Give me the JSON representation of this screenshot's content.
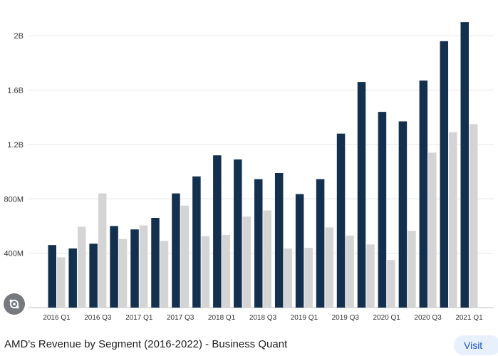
{
  "chart_data": {
    "type": "bar",
    "title": "",
    "xlabel": "",
    "ylabel": "",
    "categories": [
      "2016 Q1",
      "2016 Q2",
      "2016 Q3",
      "2016 Q4",
      "2017 Q1",
      "2017 Q2",
      "2017 Q3",
      "2017 Q4",
      "2018 Q1",
      "2018 Q2",
      "2018 Q3",
      "2018 Q4",
      "2019 Q1",
      "2019 Q2",
      "2019 Q3",
      "2019 Q4",
      "2020 Q1",
      "2020 Q2",
      "2020 Q3",
      "2020 Q4",
      "2021 Q1"
    ],
    "x_tick_labels": [
      "2016 Q1",
      "2016 Q3",
      "2017 Q1",
      "2017 Q3",
      "2018 Q1",
      "2018 Q3",
      "2019 Q1",
      "2019 Q3",
      "2020 Q1",
      "2020 Q3",
      "2021 Q1"
    ],
    "series": [
      {
        "color": "#13314f",
        "values": [
          460000000,
          435000000,
          470000000,
          600000000,
          575000000,
          660000000,
          840000000,
          965000000,
          1120000000,
          1090000000,
          945000000,
          990000000,
          835000000,
          945000000,
          1280000000,
          1660000000,
          1440000000,
          1370000000,
          1670000000,
          1960000000,
          2100000000
        ]
      },
      {
        "color": "#d4d4d4",
        "values": [
          370000000,
          595000000,
          840000000,
          505000000,
          605000000,
          490000000,
          750000000,
          525000000,
          535000000,
          670000000,
          715000000,
          435000000,
          440000000,
          590000000,
          530000000,
          465000000,
          350000000,
          565000000,
          1140000000,
          1290000000,
          1350000000
        ]
      }
    ],
    "ylim": [
      0,
      2200000000
    ],
    "y_ticks": [
      {
        "value": 400000000,
        "label": "400M"
      },
      {
        "value": 800000000,
        "label": "800M"
      },
      {
        "value": 1200000000,
        "label": "1.2B"
      },
      {
        "value": 1600000000,
        "label": "1.6B"
      },
      {
        "value": 2000000000,
        "label": "2B"
      }
    ],
    "grid": true,
    "legend": "none"
  },
  "caption": {
    "title": "AMD's Revenue by Segment (2016-2022) - Business Quant",
    "visit_label": "Visit"
  },
  "icons": {
    "lens": "lens-search-icon"
  }
}
